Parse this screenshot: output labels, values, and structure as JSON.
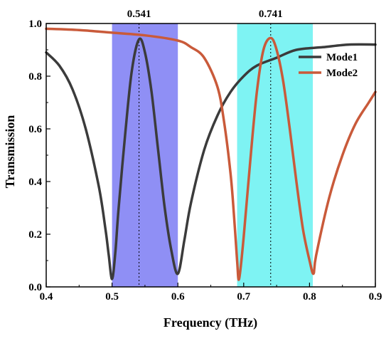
{
  "chart_data": {
    "type": "line",
    "xlabel": "Frequency (THz)",
    "ylabel": "Transmission",
    "xlim": [
      0.4,
      0.9
    ],
    "ylim": [
      0.0,
      1.0
    ],
    "x_ticks": [
      "0.4",
      "0.5",
      "0.6",
      "0.7",
      "0.8",
      "0.9"
    ],
    "y_ticks": [
      "0.0",
      "0.2",
      "0.4",
      "0.6",
      "0.8",
      "1.0"
    ],
    "legend_position": "upper-right",
    "grid": false,
    "shaded_bands": [
      {
        "x_range": [
          0.5,
          0.6
        ],
        "color": "#8f8ff5"
      },
      {
        "x_range": [
          0.69,
          0.805
        ],
        "color": "#7ef3f3"
      }
    ],
    "annotations": [
      {
        "x": 0.541,
        "label": "0.541"
      },
      {
        "x": 0.741,
        "label": "0.741"
      }
    ],
    "series": [
      {
        "name": "Mode1",
        "color": "#3b3b3b",
        "points": [
          [
            0.4,
            0.89
          ],
          [
            0.42,
            0.84
          ],
          [
            0.44,
            0.75
          ],
          [
            0.46,
            0.6
          ],
          [
            0.48,
            0.38
          ],
          [
            0.49,
            0.22
          ],
          [
            0.495,
            0.12
          ],
          [
            0.5,
            0.03
          ],
          [
            0.505,
            0.13
          ],
          [
            0.51,
            0.3
          ],
          [
            0.52,
            0.58
          ],
          [
            0.53,
            0.82
          ],
          [
            0.541,
            0.94
          ],
          [
            0.55,
            0.89
          ],
          [
            0.56,
            0.74
          ],
          [
            0.57,
            0.52
          ],
          [
            0.58,
            0.3
          ],
          [
            0.59,
            0.14
          ],
          [
            0.6,
            0.05
          ],
          [
            0.61,
            0.18
          ],
          [
            0.62,
            0.32
          ],
          [
            0.64,
            0.52
          ],
          [
            0.66,
            0.65
          ],
          [
            0.68,
            0.74
          ],
          [
            0.7,
            0.8
          ],
          [
            0.72,
            0.84
          ],
          [
            0.75,
            0.87
          ],
          [
            0.78,
            0.9
          ],
          [
            0.82,
            0.91
          ],
          [
            0.86,
            0.92
          ],
          [
            0.9,
            0.92
          ]
        ]
      },
      {
        "name": "Mode2",
        "color": "#c95a3a",
        "points": [
          [
            0.4,
            0.98
          ],
          [
            0.45,
            0.975
          ],
          [
            0.5,
            0.965
          ],
          [
            0.55,
            0.955
          ],
          [
            0.6,
            0.935
          ],
          [
            0.62,
            0.91
          ],
          [
            0.64,
            0.87
          ],
          [
            0.66,
            0.76
          ],
          [
            0.67,
            0.63
          ],
          [
            0.68,
            0.43
          ],
          [
            0.685,
            0.28
          ],
          [
            0.69,
            0.1
          ],
          [
            0.693,
            0.03
          ],
          [
            0.7,
            0.19
          ],
          [
            0.71,
            0.48
          ],
          [
            0.72,
            0.74
          ],
          [
            0.73,
            0.9
          ],
          [
            0.741,
            0.945
          ],
          [
            0.75,
            0.9
          ],
          [
            0.76,
            0.78
          ],
          [
            0.77,
            0.6
          ],
          [
            0.78,
            0.4
          ],
          [
            0.79,
            0.22
          ],
          [
            0.8,
            0.1
          ],
          [
            0.806,
            0.05
          ],
          [
            0.81,
            0.12
          ],
          [
            0.83,
            0.34
          ],
          [
            0.85,
            0.5
          ],
          [
            0.87,
            0.62
          ],
          [
            0.89,
            0.7
          ],
          [
            0.9,
            0.74
          ]
        ]
      }
    ]
  }
}
